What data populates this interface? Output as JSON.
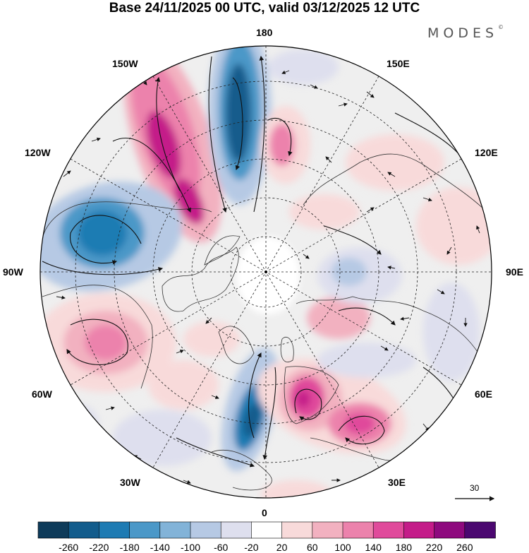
{
  "title": "Base 24/11/2025 00 UTC, valid 03/12/2025 12 UTC",
  "brand": {
    "name": "MODES",
    "mark": "©"
  },
  "longitude_labels": {
    "top": "180",
    "bottom": "0",
    "left": "90W",
    "right": "90E",
    "w150": "150W",
    "e150": "150E",
    "w120": "120W",
    "e120": "120E",
    "w60": "60W",
    "e60": "60E",
    "w30": "30W",
    "e30": "30E"
  },
  "vector_scale": {
    "label": "30"
  },
  "colorbar": {
    "ticks": [
      "-260",
      "-220",
      "-180",
      "-140",
      "-100",
      "-60",
      "-20",
      "20",
      "60",
      "100",
      "140",
      "180",
      "220",
      "260"
    ],
    "colors": [
      "#0e3b5a",
      "#125c8c",
      "#1e7bb3",
      "#4b98c8",
      "#82b3d8",
      "#b6c9e4",
      "#dedfee",
      "#ffffff",
      "#f8dada",
      "#f2b1c0",
      "#ec82ac",
      "#e04a9b",
      "#c41c89",
      "#8e0a7e",
      "#4b0870"
    ]
  },
  "colors": {
    "accent_pos": "#e04a9b",
    "accent_neg": "#1e7bb3",
    "neutral": "#efefef"
  }
}
